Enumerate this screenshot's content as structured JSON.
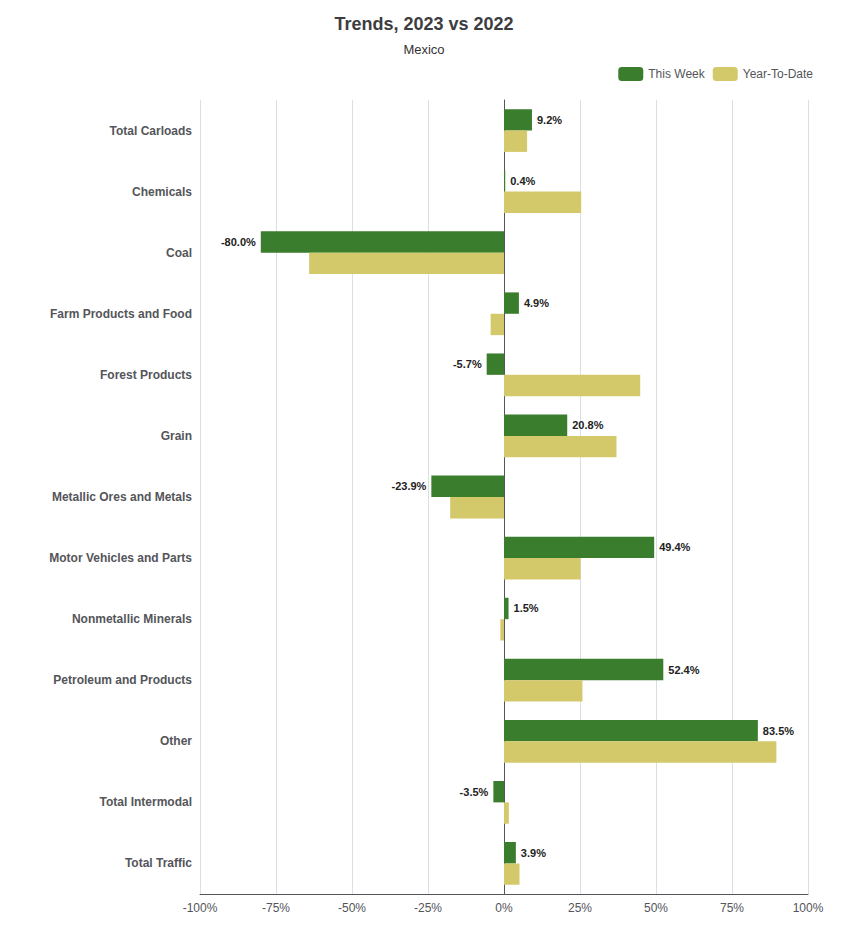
{
  "chart_data": {
    "type": "bar",
    "orientation": "horizontal",
    "title": "Trends, 2023 vs 2022",
    "subtitle": "Mexico",
    "categories": [
      "Total Carloads",
      "Chemicals",
      "Coal",
      "Farm Products and Food",
      "Forest Products",
      "Grain",
      "Metallic Ores and Metals",
      "Motor Vehicles and Parts",
      "Nonmetallic Minerals",
      "Petroleum and Products",
      "Other",
      "Total Intermodal",
      "Total Traffic"
    ],
    "series": [
      {
        "name": "This Week",
        "color": "#3A7D2C",
        "values": [
          9.2,
          0.4,
          -80.0,
          4.9,
          -5.7,
          20.8,
          -23.9,
          49.4,
          1.5,
          52.4,
          83.5,
          -3.5,
          3.9
        ],
        "data_labels": true,
        "value_labels": [
          "9.2%",
          "0.4%",
          "-80.0%",
          "4.9%",
          "-5.7%",
          "20.8%",
          "-23.9%",
          "49.4%",
          "1.5%",
          "52.4%",
          "83.5%",
          "-3.5%",
          "3.9%"
        ]
      },
      {
        "name": "Year-To-Date",
        "color": "#D4C96A",
        "values": [
          7.6,
          25.4,
          -64.1,
          -4.4,
          44.8,
          37.0,
          -17.7,
          25.2,
          -1.2,
          25.8,
          89.6,
          1.6,
          5.1
        ]
      }
    ],
    "xlim": [
      -100,
      100
    ],
    "xticks": [
      {
        "value": -100,
        "label": "-100%"
      },
      {
        "value": -75,
        "label": "-75%"
      },
      {
        "value": -50,
        "label": "-50%"
      },
      {
        "value": -25,
        "label": "-25%"
      },
      {
        "value": 0,
        "label": "0%"
      },
      {
        "value": 25,
        "label": "25%"
      },
      {
        "value": 50,
        "label": "50%"
      },
      {
        "value": 75,
        "label": "75%"
      },
      {
        "value": 100,
        "label": "100%"
      }
    ],
    "grid": true,
    "legend": "upper right"
  }
}
